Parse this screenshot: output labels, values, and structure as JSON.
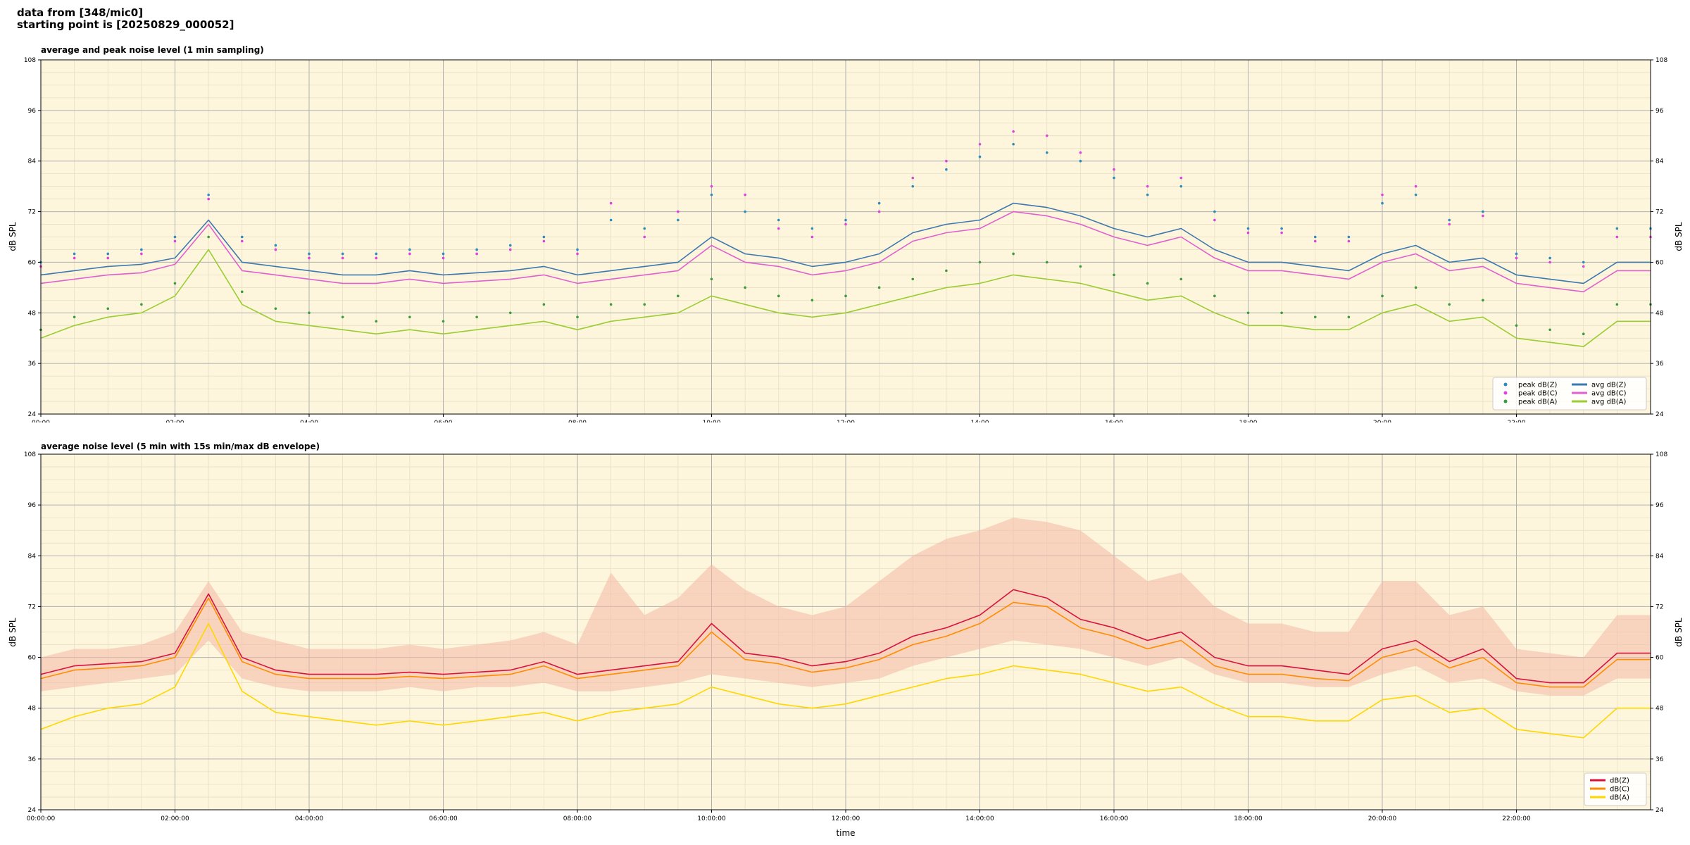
{
  "header": {
    "line1": "data from [348/mic0]",
    "line2": "starting point is [20250829_000052]"
  },
  "colors": {
    "plot_bg": "#fdf6dc",
    "peak_z": "#2b8cbe",
    "peak_c": "#e040e0",
    "peak_a": "#3c9a3c",
    "avg_z": "#3d78b0",
    "avg_c": "#e060d0",
    "avg_a": "#9acd32",
    "db_z": "#d8123c",
    "db_c": "#ff8c00",
    "db_a": "#ffd700",
    "envelope": "#f4b8a8"
  },
  "chart_data": [
    {
      "type": "line",
      "title": "average and peak noise level (1 min sampling)",
      "xlabel": "time",
      "ylabel": "dB SPL",
      "ylabel_right": "dB SPL",
      "ylim": [
        24,
        108
      ],
      "xlim_hours": [
        0,
        24
      ],
      "yticks": [
        "24",
        "36",
        "48",
        "60",
        "72",
        "84",
        "96",
        "108"
      ],
      "xticks": [
        "00:00",
        "02:00",
        "04:00",
        "06:00",
        "08:00",
        "10:00",
        "12:00",
        "14:00",
        "16:00",
        "18:00",
        "20:00",
        "22:00"
      ],
      "grid": true,
      "legend_position": "bottom-right",
      "legend": [
        {
          "label": "peak dB(Z)",
          "kind": "point",
          "color_key": "peak_z"
        },
        {
          "label": "peak dB(C)",
          "kind": "point",
          "color_key": "peak_c"
        },
        {
          "label": "peak dB(A)",
          "kind": "point",
          "color_key": "peak_a"
        },
        {
          "label": "avg dB(Z)",
          "kind": "line",
          "color_key": "avg_z"
        },
        {
          "label": "avg dB(C)",
          "kind": "line",
          "color_key": "avg_c"
        },
        {
          "label": "avg dB(A)",
          "kind": "line",
          "color_key": "avg_a"
        }
      ],
      "x": [
        0,
        0.5,
        1,
        1.5,
        2,
        2.5,
        3,
        3.5,
        4,
        4.5,
        5,
        5.5,
        6,
        6.5,
        7,
        7.5,
        8,
        8.5,
        9,
        9.5,
        10,
        10.5,
        11,
        11.5,
        12,
        12.5,
        13,
        13.5,
        14,
        14.5,
        15,
        15.5,
        16,
        16.5,
        17,
        17.5,
        18,
        18.5,
        19,
        19.5,
        20,
        20.5,
        21,
        21.5,
        22,
        22.5,
        23,
        23.5,
        24
      ],
      "series": [
        {
          "name": "avg dB(Z)",
          "color_key": "avg_z",
          "values": [
            57,
            58,
            59,
            59.5,
            61,
            70,
            60,
            59,
            58,
            57,
            57,
            58,
            57,
            57.5,
            58,
            59,
            57,
            58,
            59,
            60,
            66,
            62,
            61,
            59,
            60,
            62,
            67,
            69,
            70,
            74,
            73,
            71,
            68,
            66,
            68,
            63,
            60,
            60,
            59,
            58,
            62,
            64,
            60,
            61,
            57,
            56,
            55,
            60,
            60
          ]
        },
        {
          "name": "avg dB(C)",
          "color_key": "avg_c",
          "values": [
            55,
            56,
            57,
            57.5,
            59.5,
            69,
            58,
            57,
            56,
            55,
            55,
            56,
            55,
            55.5,
            56,
            57,
            55,
            56,
            57,
            58,
            64,
            60,
            59,
            57,
            58,
            60,
            65,
            67,
            68,
            72,
            71,
            69,
            66,
            64,
            66,
            61,
            58,
            58,
            57,
            56,
            60,
            62,
            58,
            59,
            55,
            54,
            53,
            58,
            58
          ]
        },
        {
          "name": "avg dB(A)",
          "color_key": "avg_a",
          "values": [
            42,
            45,
            47,
            48,
            52,
            63,
            50,
            46,
            45,
            44,
            43,
            44,
            43,
            44,
            45,
            46,
            44,
            46,
            47,
            48,
            52,
            50,
            48,
            47,
            48,
            50,
            52,
            54,
            55,
            57,
            56,
            55,
            53,
            51,
            52,
            48,
            45,
            45,
            44,
            44,
            48,
            50,
            46,
            47,
            42,
            41,
            40,
            46,
            46
          ]
        },
        {
          "name": "peak dB(Z)",
          "color_key": "peak_z",
          "values": [
            60,
            62,
            62,
            63,
            66,
            76,
            66,
            64,
            62,
            62,
            62,
            63,
            62,
            63,
            64,
            66,
            63,
            70,
            68,
            70,
            76,
            72,
            70,
            68,
            70,
            74,
            78,
            82,
            85,
            88,
            86,
            84,
            80,
            76,
            78,
            72,
            68,
            68,
            66,
            66,
            74,
            76,
            70,
            72,
            62,
            61,
            60,
            68,
            68
          ]
        },
        {
          "name": "peak dB(C)",
          "color_key": "peak_c",
          "values": [
            59,
            61,
            61,
            62,
            65,
            75,
            65,
            63,
            61,
            61,
            61,
            62,
            61,
            62,
            63,
            65,
            62,
            74,
            66,
            72,
            78,
            76,
            68,
            66,
            69,
            72,
            80,
            84,
            88,
            91,
            90,
            86,
            82,
            78,
            80,
            70,
            67,
            67,
            65,
            65,
            76,
            78,
            69,
            71,
            61,
            60,
            59,
            66,
            66
          ]
        },
        {
          "name": "peak dB(A)",
          "color_key": "peak_a",
          "values": [
            44,
            47,
            49,
            50,
            55,
            66,
            53,
            49,
            48,
            47,
            46,
            47,
            46,
            47,
            48,
            50,
            47,
            50,
            50,
            52,
            56,
            54,
            52,
            51,
            52,
            54,
            56,
            58,
            60,
            62,
            60,
            59,
            57,
            55,
            56,
            52,
            48,
            48,
            47,
            47,
            52,
            54,
            50,
            51,
            45,
            44,
            43,
            50,
            50
          ]
        }
      ]
    },
    {
      "type": "line",
      "title": "average noise level (5 min with 15s min/max dB envelope)",
      "xlabel": "time",
      "ylabel": "dB SPL",
      "ylabel_right": "dB SPL",
      "ylim": [
        24,
        108
      ],
      "xlim_hours": [
        0,
        24
      ],
      "yticks": [
        "24",
        "36",
        "48",
        "60",
        "72",
        "84",
        "96",
        "108"
      ],
      "xticks": [
        "00:00:00",
        "02:00:00",
        "04:00:00",
        "06:00:00",
        "08:00:00",
        "10:00:00",
        "12:00:00",
        "14:00:00",
        "16:00:00",
        "18:00:00",
        "20:00:00",
        "22:00:00"
      ],
      "grid": true,
      "legend_position": "bottom-right",
      "legend": [
        {
          "label": "dB(Z)",
          "kind": "line",
          "color_key": "db_z"
        },
        {
          "label": "dB(C)",
          "kind": "line",
          "color_key": "db_c"
        },
        {
          "label": "dB(A)",
          "kind": "line",
          "color_key": "db_a"
        }
      ],
      "x": [
        0,
        0.5,
        1,
        1.5,
        2,
        2.5,
        3,
        3.5,
        4,
        4.5,
        5,
        5.5,
        6,
        6.5,
        7,
        7.5,
        8,
        8.5,
        9,
        9.5,
        10,
        10.5,
        11,
        11.5,
        12,
        12.5,
        13,
        13.5,
        14,
        14.5,
        15,
        15.5,
        16,
        16.5,
        17,
        17.5,
        18,
        18.5,
        19,
        19.5,
        20,
        20.5,
        21,
        21.5,
        22,
        22.5,
        23,
        23.5,
        24
      ],
      "envelope_max": [
        60,
        62,
        62,
        63,
        66,
        78,
        66,
        64,
        62,
        62,
        62,
        63,
        62,
        63,
        64,
        66,
        63,
        80,
        70,
        74,
        82,
        76,
        72,
        70,
        72,
        78,
        84,
        88,
        90,
        93,
        92,
        90,
        84,
        78,
        80,
        72,
        68,
        68,
        66,
        66,
        78,
        78,
        70,
        72,
        62,
        61,
        60,
        70,
        70
      ],
      "envelope_min": [
        52,
        53,
        54,
        55,
        56,
        64,
        55,
        53,
        52,
        52,
        52,
        53,
        52,
        53,
        53,
        54,
        52,
        52,
        53,
        54,
        56,
        55,
        54,
        53,
        54,
        55,
        58,
        60,
        62,
        64,
        63,
        62,
        60,
        58,
        60,
        56,
        54,
        54,
        53,
        53,
        56,
        58,
        54,
        55,
        52,
        51,
        51,
        55,
        55
      ],
      "series": [
        {
          "name": "dB(Z)",
          "color_key": "db_z",
          "values": [
            56,
            58,
            58.5,
            59,
            61,
            75,
            60,
            57,
            56,
            56,
            56,
            56.5,
            56,
            56.5,
            57,
            59,
            56,
            57,
            58,
            59,
            68,
            61,
            60,
            58,
            59,
            61,
            65,
            67,
            70,
            76,
            74,
            69,
            67,
            64,
            66,
            60,
            58,
            58,
            57,
            56,
            62,
            64,
            59,
            62,
            55,
            54,
            54,
            61,
            61
          ]
        },
        {
          "name": "dB(C)",
          "color_key": "db_c",
          "values": [
            55,
            57,
            57.5,
            58,
            60,
            74,
            59,
            56,
            55,
            55,
            55,
            55.5,
            55,
            55.5,
            56,
            58,
            55,
            56,
            57,
            58,
            66,
            59.5,
            58.5,
            56.5,
            57.5,
            59.5,
            63,
            65,
            68,
            73,
            72,
            67,
            65,
            62,
            64,
            58,
            56,
            56,
            55,
            54.5,
            60,
            62,
            57.5,
            60,
            54,
            53,
            53,
            59.5,
            59.5
          ]
        },
        {
          "name": "dB(A)",
          "color_key": "db_a",
          "values": [
            43,
            46,
            48,
            49,
            53,
            68,
            52,
            47,
            46,
            45,
            44,
            45,
            44,
            45,
            46,
            47,
            45,
            47,
            48,
            49,
            53,
            51,
            49,
            48,
            49,
            51,
            53,
            55,
            56,
            58,
            57,
            56,
            54,
            52,
            53,
            49,
            46,
            46,
            45,
            45,
            50,
            51,
            47,
            48,
            43,
            42,
            41,
            48,
            48
          ]
        }
      ]
    }
  ]
}
